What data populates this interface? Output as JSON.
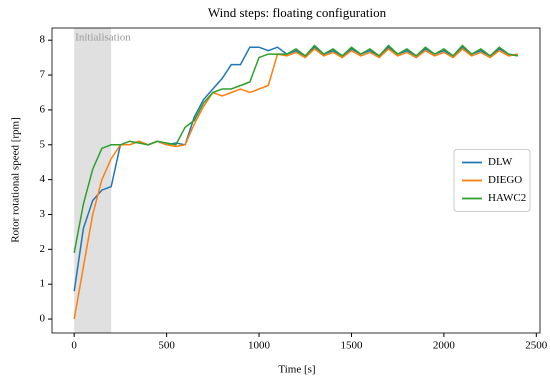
{
  "chart_data": {
    "type": "line",
    "title": "Wind steps: floating configuration",
    "xlabel": "Time [s]",
    "ylabel": "Rotor rotational speed [rpm]",
    "shaded_span": {
      "x": [
        0,
        200
      ],
      "label": "Initialisation",
      "color": "#e0e0e0"
    },
    "x": [
      0,
      50,
      100,
      150,
      200,
      250,
      300,
      350,
      400,
      450,
      500,
      550,
      600,
      650,
      700,
      750,
      800,
      850,
      900,
      950,
      1000,
      1050,
      1100,
      1150,
      1200,
      1250,
      1300,
      1350,
      1400,
      1450,
      1500,
      1550,
      1600,
      1650,
      1700,
      1750,
      1800,
      1850,
      1900,
      1950,
      2000,
      2050,
      2100,
      2150,
      2200,
      2250,
      2300,
      2350,
      2400
    ],
    "series": [
      {
        "name": "DLW",
        "color": "#1f77b4",
        "values": [
          0.8,
          2.6,
          3.4,
          3.7,
          3.8,
          5.0,
          5.0,
          5.1,
          5.0,
          5.1,
          5.0,
          5.05,
          5.0,
          5.8,
          6.3,
          6.6,
          6.9,
          7.3,
          7.3,
          7.8,
          7.8,
          7.7,
          7.8,
          7.6,
          7.7,
          7.55,
          7.8,
          7.6,
          7.7,
          7.55,
          7.75,
          7.6,
          7.7,
          7.55,
          7.8,
          7.6,
          7.7,
          7.55,
          7.75,
          7.6,
          7.7,
          7.55,
          7.8,
          7.6,
          7.7,
          7.55,
          7.75,
          7.6,
          7.55
        ]
      },
      {
        "name": "DIEGO",
        "color": "#ff7f0e",
        "values": [
          0.0,
          1.5,
          3.0,
          4.0,
          4.6,
          5.0,
          5.0,
          5.1,
          5.0,
          5.1,
          5.0,
          4.95,
          5.0,
          5.6,
          6.1,
          6.5,
          6.4,
          6.5,
          6.6,
          6.5,
          6.6,
          6.7,
          7.6,
          7.55,
          7.65,
          7.5,
          7.75,
          7.55,
          7.65,
          7.5,
          7.7,
          7.55,
          7.65,
          7.5,
          7.75,
          7.55,
          7.65,
          7.5,
          7.7,
          7.55,
          7.65,
          7.5,
          7.75,
          7.55,
          7.65,
          7.5,
          7.7,
          7.55,
          7.6
        ]
      },
      {
        "name": "HAWC2",
        "color": "#2ca02c",
        "values": [
          1.9,
          3.3,
          4.3,
          4.9,
          5.0,
          5.0,
          5.1,
          5.05,
          5.0,
          5.1,
          5.05,
          5.0,
          5.5,
          5.7,
          6.2,
          6.5,
          6.6,
          6.6,
          6.7,
          6.8,
          7.5,
          7.6,
          7.6,
          7.6,
          7.75,
          7.55,
          7.85,
          7.6,
          7.75,
          7.55,
          7.8,
          7.6,
          7.75,
          7.55,
          7.85,
          7.6,
          7.75,
          7.55,
          7.8,
          7.6,
          7.75,
          7.55,
          7.85,
          7.6,
          7.75,
          7.55,
          7.8,
          7.6,
          7.55
        ]
      }
    ],
    "xlim": [
      -120,
      2520
    ],
    "ylim": [
      -0.4,
      8.35
    ],
    "xticks": [
      0,
      500,
      1000,
      1500,
      2000,
      2500
    ],
    "yticks": [
      0,
      1,
      2,
      3,
      4,
      5,
      6,
      7,
      8
    ],
    "legend": "center right",
    "grid": false
  }
}
